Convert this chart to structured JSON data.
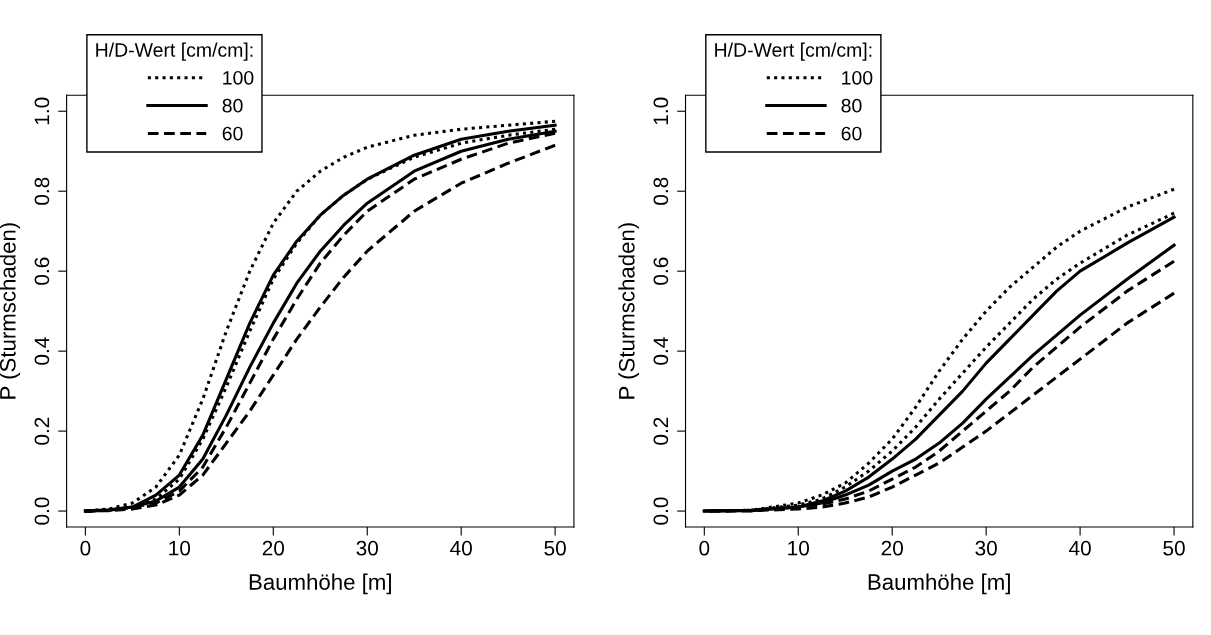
{
  "chart_data": [
    {
      "type": "line",
      "xlabel": "Baumhöhe [m]",
      "ylabel": "P (Sturmschaden)",
      "legend_title": "H/D-Wert [cm/cm]:",
      "legend": "top left",
      "grid": false,
      "marker": "none",
      "xlim": [
        -2,
        52
      ],
      "ylim": [
        -0.04,
        1.04
      ],
      "xticks": [
        0,
        10,
        20,
        30,
        40,
        50
      ],
      "yticks": [
        {
          "value": 0,
          "label": "0.0"
        },
        {
          "value": 0.2,
          "label": "0.2"
        },
        {
          "value": 0.4,
          "label": "0.4"
        },
        {
          "value": 0.6,
          "label": "0.6"
        },
        {
          "value": 0.8,
          "label": "0.8"
        },
        {
          "value": 1,
          "label": "1.0"
        }
      ],
      "x": [
        0,
        2.5,
        5,
        7.5,
        10,
        12.5,
        15,
        17.5,
        20,
        22.5,
        25,
        27.5,
        30,
        35,
        40,
        45,
        50
      ],
      "series": [
        {
          "name": "100",
          "color": "#000000",
          "line_style": "dotted",
          "values": [
            0,
            0.005,
            0.02,
            0.06,
            0.14,
            0.28,
            0.45,
            0.6,
            0.72,
            0.8,
            0.85,
            0.885,
            0.91,
            0.94,
            0.955,
            0.965,
            0.975
          ]
        },
        {
          "name": "80",
          "color": "#000000",
          "line_style": "solid",
          "values": [
            0,
            0.003,
            0.01,
            0.04,
            0.09,
            0.19,
            0.33,
            0.47,
            0.59,
            0.675,
            0.74,
            0.79,
            0.83,
            0.89,
            0.93,
            0.95,
            0.965
          ]
        },
        {
          "name": "60",
          "color": "#000000",
          "line_style": "dashed",
          "values": [
            0,
            0.002,
            0.01,
            0.02,
            0.05,
            0.11,
            0.21,
            0.32,
            0.43,
            0.53,
            0.62,
            0.69,
            0.75,
            0.83,
            0.88,
            0.92,
            0.945
          ]
        },
        {
          "color": "#000000",
          "line_style": "dotted",
          "values": [
            0,
            0.003,
            0.01,
            0.03,
            0.08,
            0.18,
            0.31,
            0.45,
            0.58,
            0.67,
            0.74,
            0.79,
            0.83,
            0.885,
            0.92,
            0.94,
            0.955
          ]
        },
        {
          "color": "#000000",
          "line_style": "solid",
          "values": [
            0,
            0.002,
            0.01,
            0.025,
            0.06,
            0.13,
            0.24,
            0.36,
            0.47,
            0.57,
            0.65,
            0.715,
            0.77,
            0.85,
            0.9,
            0.93,
            0.95
          ]
        },
        {
          "color": "#000000",
          "line_style": "dashed",
          "values": [
            0,
            0.001,
            0.005,
            0.015,
            0.04,
            0.09,
            0.17,
            0.25,
            0.34,
            0.43,
            0.51,
            0.585,
            0.65,
            0.75,
            0.82,
            0.87,
            0.915
          ]
        }
      ]
    },
    {
      "type": "line",
      "xlabel": "Baumhöhe [m]",
      "ylabel": "P (Sturmschaden)",
      "legend_title": "H/D-Wert [cm/cm]:",
      "legend": "top left",
      "grid": false,
      "marker": "none",
      "xlim": [
        -2,
        52
      ],
      "ylim": [
        -0.04,
        1.04
      ],
      "xticks": [
        0,
        10,
        20,
        30,
        40,
        50
      ],
      "yticks": [
        {
          "value": 0,
          "label": "0.0"
        },
        {
          "value": 0.2,
          "label": "0.2"
        },
        {
          "value": 0.4,
          "label": "0.4"
        },
        {
          "value": 0.6,
          "label": "0.6"
        },
        {
          "value": 0.8,
          "label": "0.8"
        },
        {
          "value": 1,
          "label": "1.0"
        }
      ],
      "x": [
        0,
        5,
        10,
        12.5,
        15,
        17.5,
        20,
        22.5,
        25,
        27.5,
        30,
        32.5,
        35,
        37.5,
        40,
        45,
        50
      ],
      "series": [
        {
          "name": "100",
          "color": "#000000",
          "line_style": "dotted",
          "values": [
            0,
            0.002,
            0.02,
            0.04,
            0.07,
            0.12,
            0.18,
            0.26,
            0.35,
            0.43,
            0.5,
            0.56,
            0.61,
            0.66,
            0.7,
            0.76,
            0.805
          ]
        },
        {
          "name": "80",
          "color": "#000000",
          "line_style": "solid",
          "values": [
            0,
            0.002,
            0.01,
            0.025,
            0.05,
            0.085,
            0.13,
            0.18,
            0.24,
            0.3,
            0.37,
            0.43,
            0.49,
            0.55,
            0.6,
            0.67,
            0.735
          ]
        },
        {
          "name": "60",
          "color": "#000000",
          "line_style": "dashed",
          "values": [
            0,
            0.001,
            0.01,
            0.017,
            0.03,
            0.05,
            0.08,
            0.11,
            0.15,
            0.2,
            0.25,
            0.3,
            0.36,
            0.41,
            0.46,
            0.55,
            0.625
          ]
        },
        {
          "color": "#000000",
          "line_style": "dotted",
          "values": [
            0,
            0.002,
            0.015,
            0.03,
            0.06,
            0.1,
            0.15,
            0.21,
            0.28,
            0.345,
            0.41,
            0.47,
            0.53,
            0.58,
            0.62,
            0.69,
            0.745
          ]
        },
        {
          "color": "#000000",
          "line_style": "solid",
          "values": [
            0,
            0.001,
            0.01,
            0.02,
            0.04,
            0.065,
            0.1,
            0.13,
            0.17,
            0.22,
            0.28,
            0.335,
            0.39,
            0.44,
            0.49,
            0.58,
            0.665
          ]
        },
        {
          "color": "#000000",
          "line_style": "dashed",
          "values": [
            0,
            0.001,
            0.005,
            0.01,
            0.02,
            0.035,
            0.06,
            0.09,
            0.12,
            0.16,
            0.2,
            0.245,
            0.29,
            0.335,
            0.38,
            0.47,
            0.545
          ]
        }
      ]
    }
  ]
}
